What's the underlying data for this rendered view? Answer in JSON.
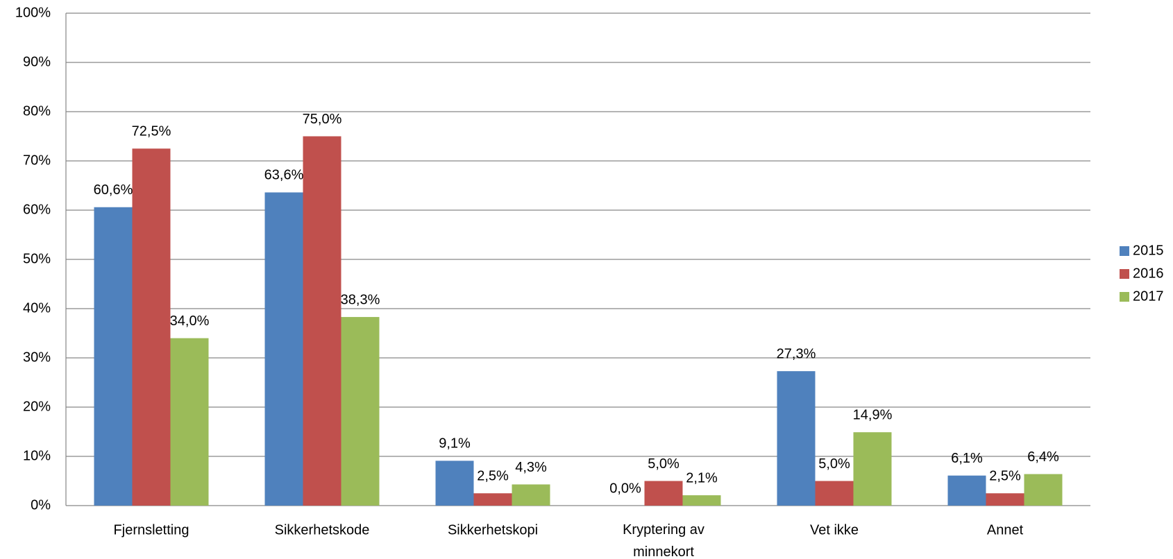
{
  "chart_data": {
    "type": "bar",
    "categories": [
      "Fjernsletting",
      "Sikkerhetskode",
      "Sikkerhetskopi",
      "Kryptering av minnekort",
      "Vet ikke",
      "Annet"
    ],
    "series": [
      {
        "name": "2015",
        "color": "#4f81bd",
        "values": [
          60.6,
          63.6,
          9.1,
          0.0,
          27.3,
          6.1
        ],
        "value_labels": [
          "60,6%",
          "63,6%",
          "9,1%",
          "0,0%",
          "27,3%",
          "6,1%"
        ]
      },
      {
        "name": "2016",
        "color": "#c0504d",
        "values": [
          72.5,
          75.0,
          2.5,
          5.0,
          5.0,
          2.5
        ],
        "value_labels": [
          "72,5%",
          "75,0%",
          "2,5%",
          "5,0%",
          "5,0%",
          "2,5%"
        ]
      },
      {
        "name": "2017",
        "color": "#9bbb59",
        "values": [
          34.0,
          38.3,
          4.3,
          2.1,
          14.9,
          6.4
        ],
        "value_labels": [
          "34,0%",
          "38,3%",
          "4,3%",
          "2,1%",
          "14,9%",
          "6,4%"
        ]
      }
    ],
    "ylim": [
      0,
      100
    ],
    "yticks": [
      {
        "value": 0,
        "label": "0%"
      },
      {
        "value": 10,
        "label": "10%"
      },
      {
        "value": 20,
        "label": "20%"
      },
      {
        "value": 30,
        "label": "30%"
      },
      {
        "value": 40,
        "label": "40%"
      },
      {
        "value": 50,
        "label": "50%"
      },
      {
        "value": 60,
        "label": "60%"
      },
      {
        "value": 70,
        "label": "70%"
      },
      {
        "value": 80,
        "label": "80%"
      },
      {
        "value": 90,
        "label": "90%"
      },
      {
        "value": 100,
        "label": "100%"
      }
    ],
    "grid": true,
    "legend": "right"
  }
}
